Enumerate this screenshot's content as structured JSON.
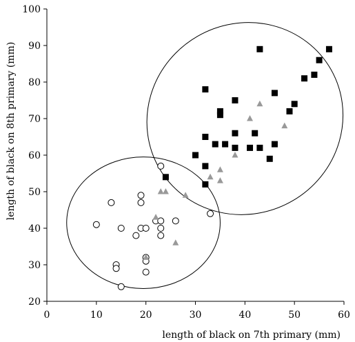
{
  "chart_data": {
    "type": "scatter",
    "title": "",
    "xlabel": "length of black on 7th primary (mm)",
    "ylabel": "length of black on 8th primary (mm)",
    "xlim": [
      0,
      60
    ],
    "ylim": [
      20,
      100
    ],
    "x_ticks": [
      "0",
      "10",
      "20",
      "30",
      "40",
      "50",
      "60"
    ],
    "y_ticks": [
      "20",
      "30",
      "40",
      "50",
      "60",
      "70",
      "80",
      "90",
      "100"
    ],
    "grid": false,
    "legend": "none",
    "series": [
      {
        "marker": "filled-square",
        "color": "#000000",
        "points": [
          [
            24,
            54
          ],
          [
            30,
            60
          ],
          [
            32,
            52
          ],
          [
            32,
            57
          ],
          [
            32,
            65
          ],
          [
            32,
            78
          ],
          [
            34,
            63
          ],
          [
            35,
            71
          ],
          [
            35,
            72
          ],
          [
            36,
            63
          ],
          [
            38,
            62
          ],
          [
            38,
            66
          ],
          [
            38,
            75
          ],
          [
            41,
            62
          ],
          [
            42,
            66
          ],
          [
            43,
            62
          ],
          [
            43,
            89
          ],
          [
            45,
            59
          ],
          [
            46,
            63
          ],
          [
            46,
            77
          ],
          [
            49,
            72
          ],
          [
            50,
            74
          ],
          [
            52,
            81
          ],
          [
            54,
            82
          ],
          [
            55,
            86
          ],
          [
            57,
            89
          ]
        ]
      },
      {
        "marker": "open-circle",
        "color": "#000000",
        "points": [
          [
            10,
            41
          ],
          [
            13,
            47
          ],
          [
            14,
            30
          ],
          [
            14,
            29
          ],
          [
            15,
            40
          ],
          [
            15,
            24
          ],
          [
            18,
            38
          ],
          [
            19,
            49
          ],
          [
            19,
            47
          ],
          [
            19,
            40
          ],
          [
            20,
            40
          ],
          [
            20,
            32
          ],
          [
            20,
            31
          ],
          [
            20,
            28
          ],
          [
            22,
            42
          ],
          [
            23,
            57
          ],
          [
            23,
            42
          ],
          [
            23,
            40
          ],
          [
            23,
            38
          ],
          [
            26,
            42
          ],
          [
            33,
            44
          ]
        ]
      },
      {
        "marker": "filled-triangle",
        "color": "#999999",
        "points": [
          [
            20,
            32
          ],
          [
            22,
            43
          ],
          [
            23,
            50
          ],
          [
            24,
            50
          ],
          [
            26,
            36
          ],
          [
            28,
            49
          ],
          [
            33,
            54
          ],
          [
            35,
            56
          ],
          [
            35,
            53
          ],
          [
            38,
            60
          ],
          [
            41,
            70
          ],
          [
            43,
            74
          ],
          [
            48,
            68
          ]
        ]
      }
    ],
    "ellipses": [
      {
        "cx": 19.5,
        "cy": 41.5,
        "rx": 15.5,
        "ry": 18
      },
      {
        "cx": 40,
        "cy": 70,
        "rx": 20,
        "ry": 26,
        "rotation": -30
      }
    ]
  }
}
